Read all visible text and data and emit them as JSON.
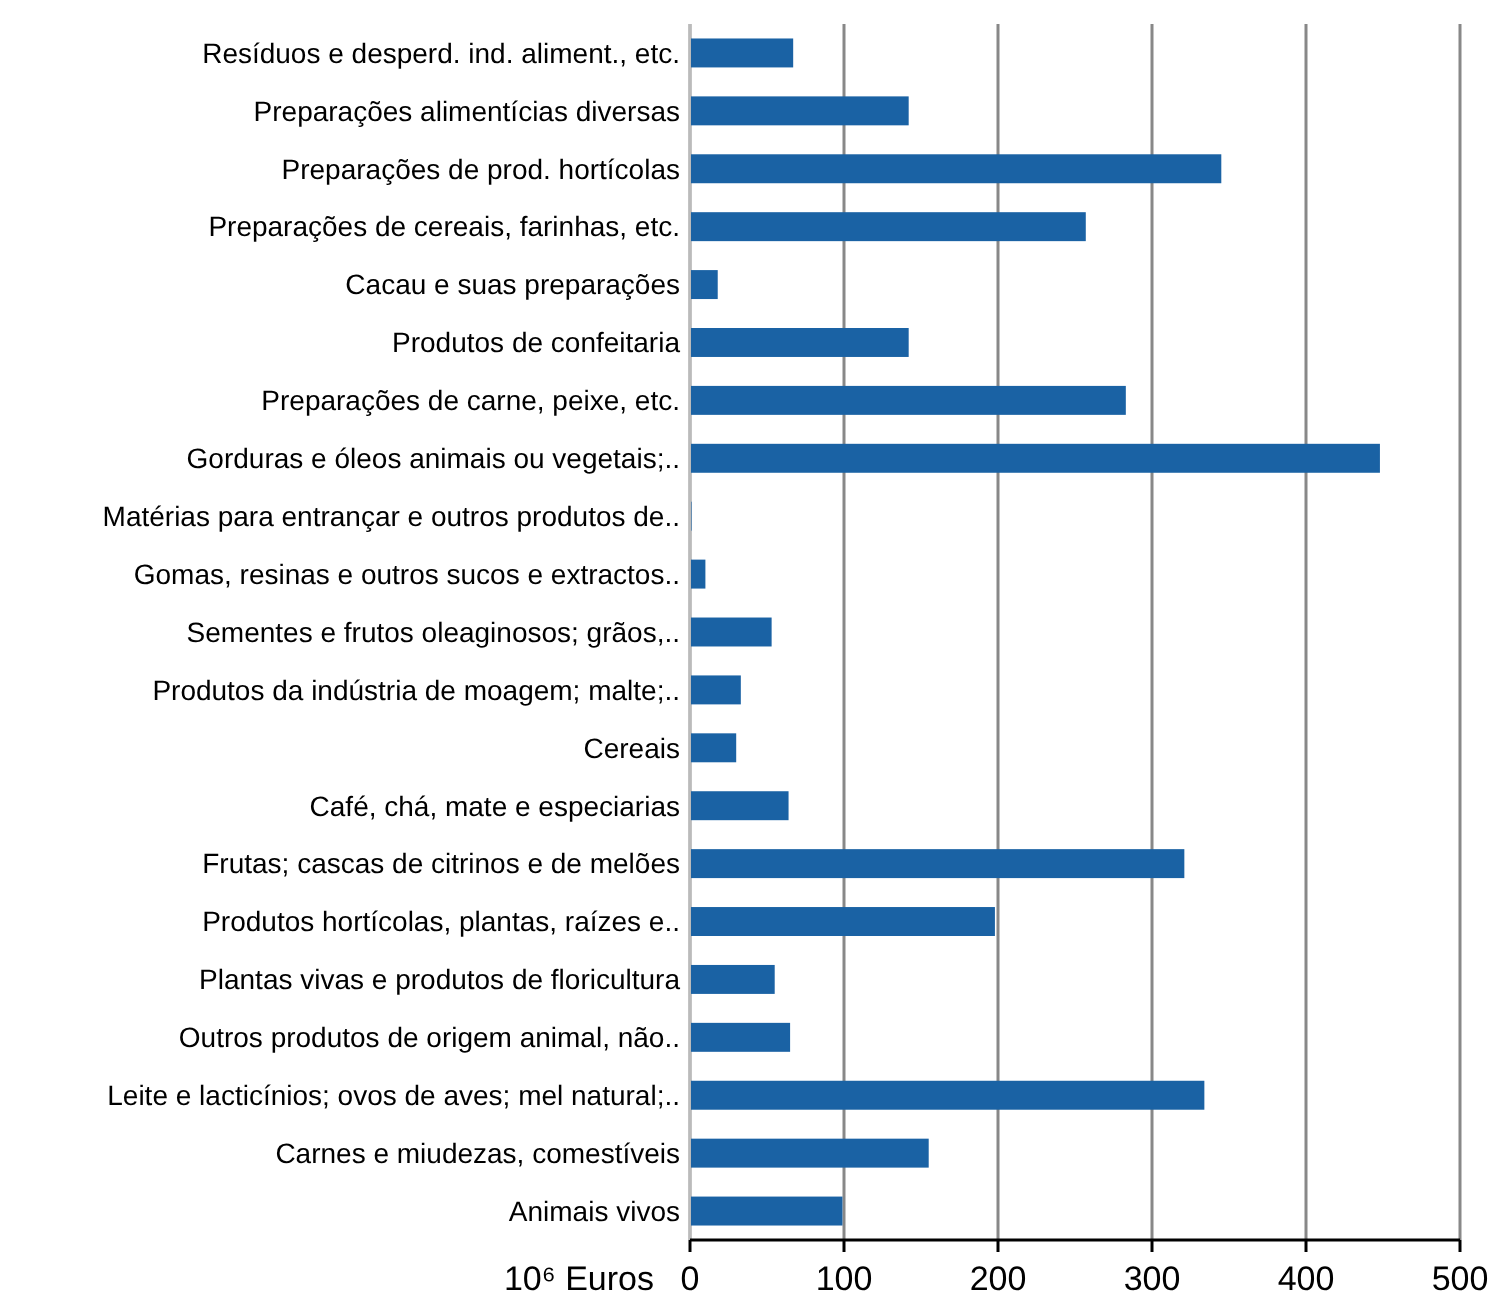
{
  "chart_data": {
    "type": "bar",
    "orientation": "horizontal",
    "xlabel": "10⁶ Euros",
    "categories": [
      "Resíduos e desperd. ind. aliment., etc.",
      "Preparações alimentícias diversas",
      "Preparações de prod. hortícolas",
      "Preparações de cereais, farinhas, etc.",
      "Cacau e suas preparações",
      "Produtos de confeitaria",
      "Preparações de carne, peixe, etc.",
      "Gorduras e óleos animais ou vegetais;..",
      "Matérias para entrançar e outros produtos de..",
      "Gomas, resinas e outros sucos e extractos..",
      "Sementes e frutos oleaginosos; grãos,..",
      "Produtos da indústria de moagem; malte;..",
      "Cereais",
      "Café, chá, mate e especiarias",
      "Frutas; cascas de citrinos e de melões",
      "Produtos hortícolas, plantas, raízes e..",
      "Plantas vivas e produtos de floricultura",
      "Outros produtos de origem animal, não..",
      "Leite e lacticínios; ovos de aves; mel natural;..",
      "Carnes e miudezas, comestíveis",
      "Animais vivos"
    ],
    "values": [
      67,
      142,
      345,
      257,
      18,
      142,
      283,
      448,
      1,
      10,
      53,
      33,
      30,
      64,
      321,
      198,
      55,
      65,
      334,
      155,
      99
    ],
    "color": "#1a62a4",
    "xlim": [
      0,
      500
    ],
    "xticks": [
      0,
      100,
      200,
      300,
      400,
      500
    ],
    "grid": "x"
  }
}
